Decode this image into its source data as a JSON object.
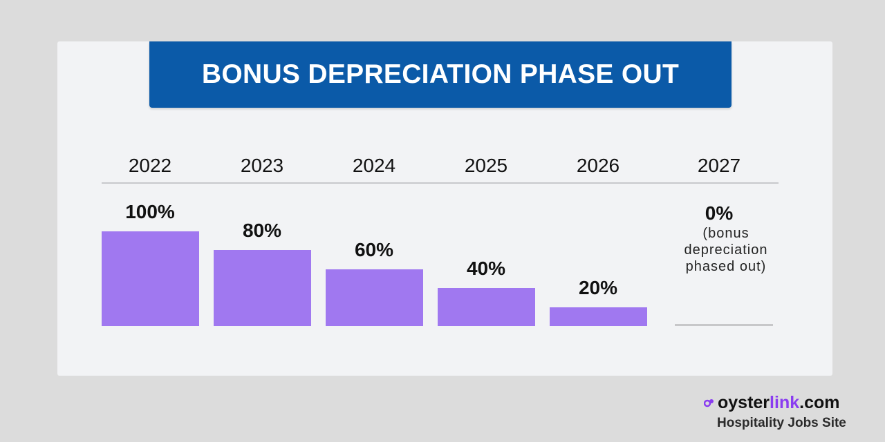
{
  "chart_data": {
    "type": "bar",
    "title": "BONUS DEPRECIATION PHASE OUT",
    "categories": [
      "2022",
      "2023",
      "2024",
      "2025",
      "2026",
      "2027"
    ],
    "values": [
      100,
      80,
      60,
      40,
      20,
      0
    ],
    "value_labels": [
      "100%",
      "80%",
      "60%",
      "40%",
      "20%",
      "0%"
    ],
    "note_2027": "(bonus\ndepreciation\nphased out)",
    "ylim": [
      0,
      100
    ],
    "bar_color": "#a078f0",
    "grid": false
  },
  "brand": {
    "name_part1": "oyster",
    "name_part2": "link",
    "name_part3": ".com",
    "tagline": "Hospitality Jobs Site",
    "accent_color": "#8a3df0",
    "icon": "oysterlink-logo-icon"
  },
  "colors": {
    "title_banner": "#0b5aa8",
    "background": "#dcdcdc",
    "card": "#f2f3f5"
  }
}
